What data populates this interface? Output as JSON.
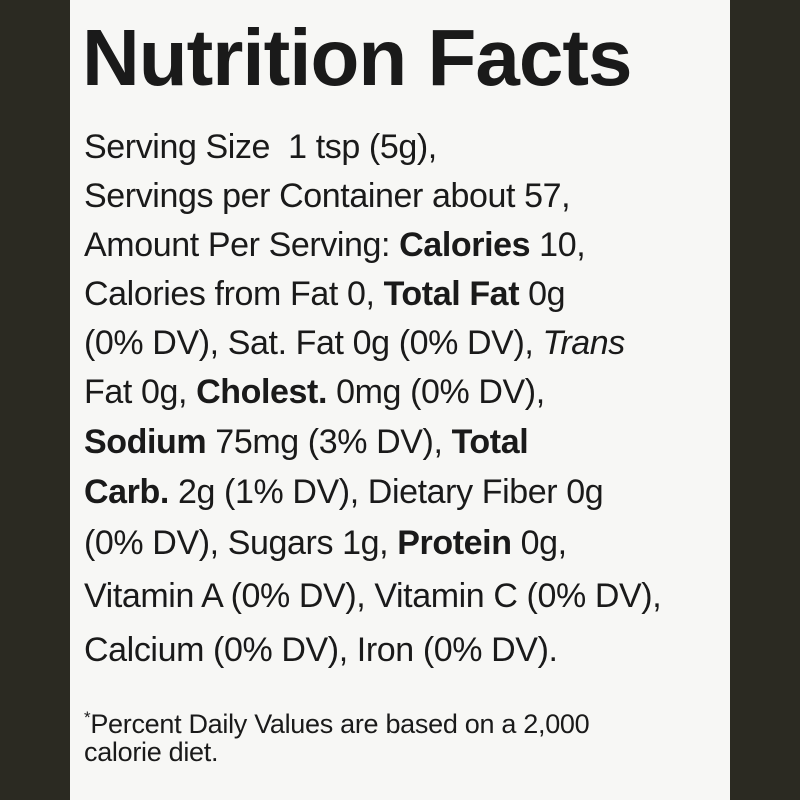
{
  "title": "Nutrition Facts",
  "lines": [
    [
      "Serving Size  1 tsp (5g),"
    ],
    [
      "Servings per Container about 57,"
    ],
    [
      "Amount Per Serving: ",
      "Calories",
      " 10,"
    ],
    [
      "Calories from Fat 0, ",
      "Total Fat",
      " 0g"
    ],
    [
      "(0% DV), Sat. Fat 0g (0% DV), ",
      "Trans"
    ],
    [
      "Fat 0g, ",
      "Cholest.",
      " 0mg (0% DV),"
    ],
    [
      "Sodium",
      " 75mg (3% DV), ",
      "Total"
    ],
    [
      "Carb.",
      " 2g (1% DV), Dietary Fiber 0g"
    ],
    [
      "(0% DV), Sugars 1g, ",
      "Protein",
      " 0g,"
    ],
    [
      "Vitamin A (0% DV), Vitamin C (0% DV),"
    ],
    [
      "Calcium (0% DV), Iron (0% DV)."
    ]
  ],
  "footnote": {
    "mark": "*",
    "lines": [
      "Percent Daily Values are based on a 2,000",
      "calorie diet."
    ]
  }
}
